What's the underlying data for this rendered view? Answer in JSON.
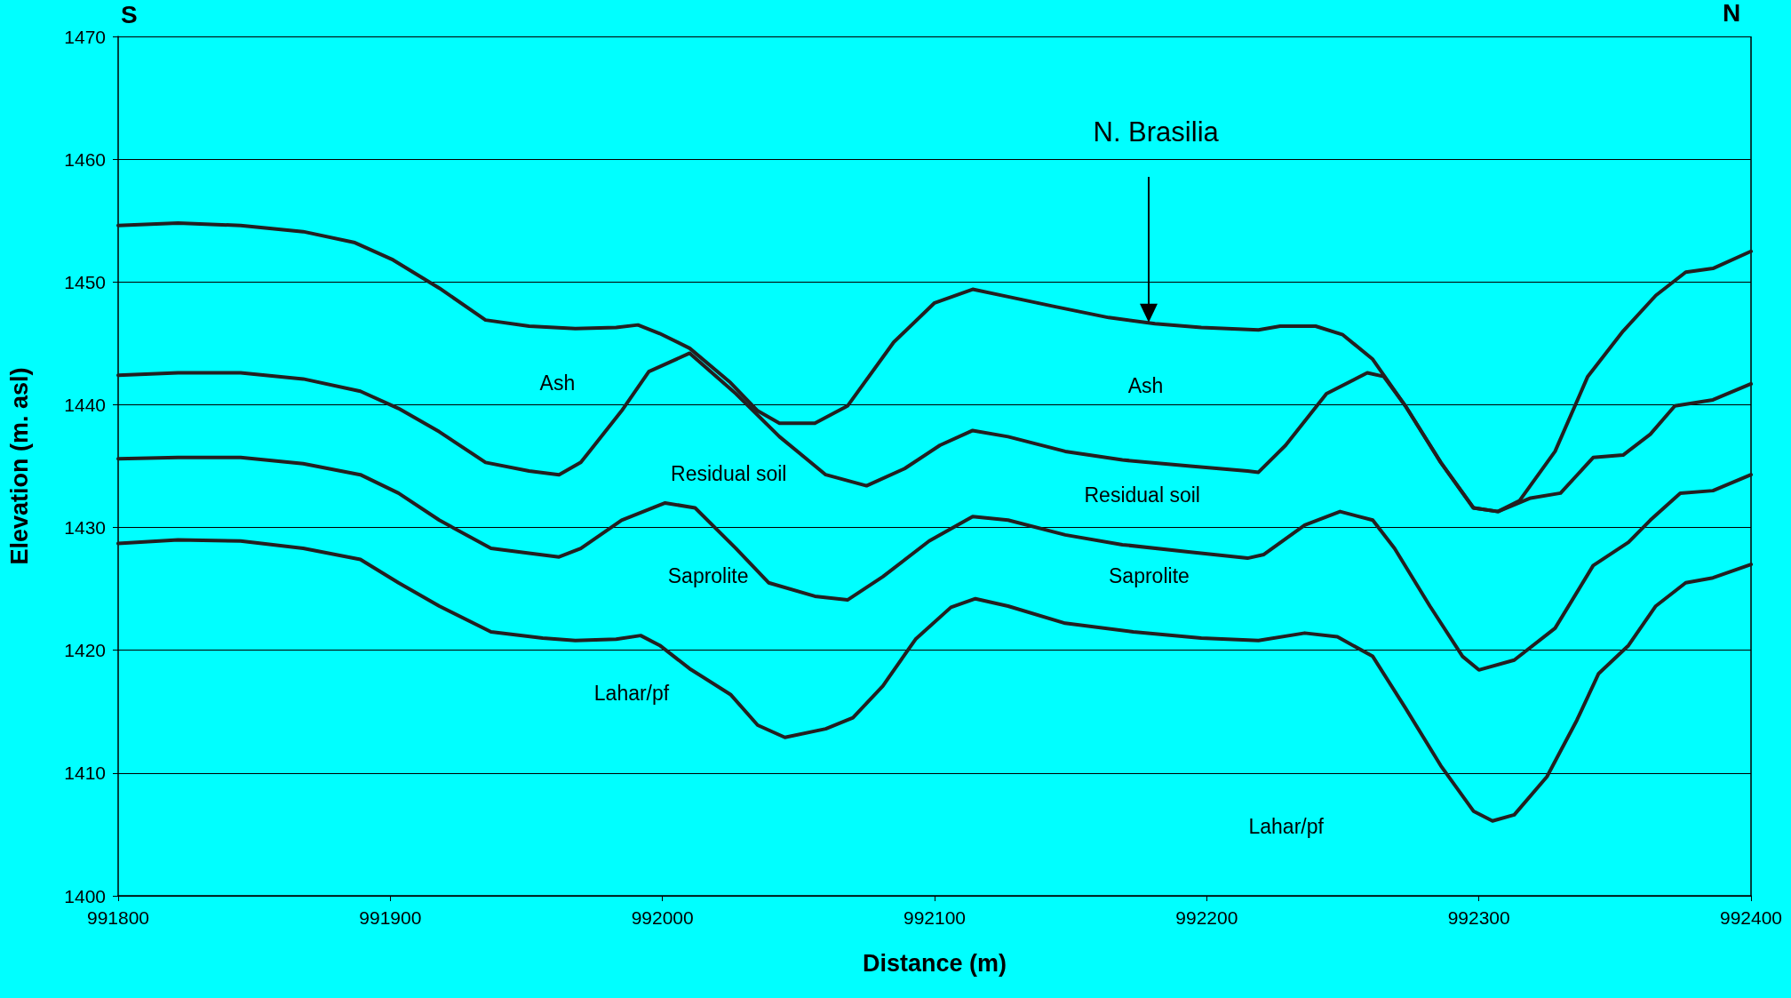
{
  "chart_data": {
    "type": "line",
    "xlabel": "Distance (m)",
    "ylabel": "Elevation (m. asl)",
    "xlim": [
      991800,
      992400
    ],
    "xticks": [
      991800,
      991900,
      992000,
      992100,
      992200,
      992300,
      992400
    ],
    "ylim": [
      1400,
      1470
    ],
    "yticks": [
      1400,
      1410,
      1420,
      1430,
      1440,
      1450,
      1460,
      1470
    ],
    "grid": "y",
    "marker": "none",
    "line_style": "solid",
    "series": [
      {
        "color": "#231f20",
        "x": [
          991800,
          991822,
          991845,
          991868,
          991887,
          991901,
          991918,
          991935,
          991951,
          991968,
          991983,
          991991,
          991999,
          992010,
          992025,
          992035,
          992043,
          992056,
          992068,
          992085,
          992100,
          992114,
          992127,
          992144,
          992164,
          992181,
          992198,
          992219,
          992227,
          992240,
          992250,
          992261,
          992273,
          992286,
          992298,
          992307,
          992315,
          992328,
          992340,
          992353,
          992365,
          992376,
          992386,
          992400
        ],
        "values": [
          1454.6,
          1454.8,
          1454.6,
          1454.1,
          1453.2,
          1451.8,
          1449.5,
          1446.9,
          1446.4,
          1446.2,
          1446.3,
          1446.5,
          1445.8,
          1444.6,
          1441.8,
          1439.5,
          1438.5,
          1438.5,
          1439.9,
          1445.1,
          1448.3,
          1449.4,
          1448.8,
          1448.0,
          1447.1,
          1446.6,
          1446.3,
          1446.1,
          1446.4,
          1446.4,
          1445.7,
          1443.7,
          1439.9,
          1435.3,
          1431.6,
          1431.3,
          1432.2,
          1436.2,
          1442.3,
          1446.0,
          1448.9,
          1450.8,
          1451.1,
          1452.5
        ]
      },
      {
        "color": "#231f20",
        "x": [
          991800,
          991822,
          991845,
          991868,
          991889,
          991903,
          991918,
          991935,
          991951,
          991962,
          991970,
          991985,
          991995,
          992010,
          992027,
          992043,
          992060,
          992075,
          992089,
          992102,
          992114,
          992127,
          992148,
          992169,
          992194,
          992215,
          992219,
          992229,
          992244,
          992259,
          992265,
          992273,
          992286,
          992298,
          992307,
          992319,
          992330,
          992342,
          992353,
          992363,
          992372,
          992386,
          992400
        ],
        "values": [
          1442.4,
          1442.6,
          1442.6,
          1442.1,
          1441.1,
          1439.7,
          1437.8,
          1435.3,
          1434.6,
          1434.3,
          1435.3,
          1439.5,
          1442.7,
          1444.2,
          1440.9,
          1437.4,
          1434.3,
          1433.4,
          1434.8,
          1436.7,
          1437.9,
          1437.4,
          1436.2,
          1435.5,
          1435.0,
          1434.6,
          1434.5,
          1436.7,
          1440.9,
          1442.6,
          1442.3,
          1439.9,
          1435.3,
          1431.6,
          1431.3,
          1432.4,
          1432.8,
          1435.7,
          1435.9,
          1437.6,
          1439.9,
          1440.4,
          1441.7
        ]
      },
      {
        "color": "#231f20",
        "x": [
          991800,
          991822,
          991845,
          991868,
          991889,
          991903,
          991918,
          991937,
          991951,
          991962,
          991970,
          991985,
          992001,
          992012,
          992027,
          992039,
          992056,
          992068,
          992081,
          992098,
          992114,
          992127,
          992148,
          992169,
          992194,
          992215,
          992221,
          992236,
          992249,
          992261,
          992269,
          992282,
          992294,
          992300,
          992313,
          992328,
          992342,
          992355,
          992363,
          992374,
          992386,
          992400
        ],
        "values": [
          1435.6,
          1435.7,
          1435.7,
          1435.2,
          1434.3,
          1432.8,
          1430.6,
          1428.3,
          1427.9,
          1427.6,
          1428.3,
          1430.6,
          1432.0,
          1431.6,
          1428.3,
          1425.5,
          1424.4,
          1424.1,
          1426.0,
          1428.9,
          1430.9,
          1430.6,
          1429.4,
          1428.6,
          1428.0,
          1427.5,
          1427.8,
          1430.2,
          1431.3,
          1430.6,
          1428.3,
          1423.6,
          1419.5,
          1418.4,
          1419.2,
          1421.8,
          1426.9,
          1428.8,
          1430.6,
          1432.8,
          1433.0,
          1434.3
        ]
      },
      {
        "color": "#231f20",
        "x": [
          991800,
          991822,
          991845,
          991868,
          991889,
          991903,
          991918,
          991937,
          991956,
          991968,
          991983,
          991992,
          991999,
          992010,
          992025,
          992035,
          992045,
          992060,
          992070,
          992081,
          992093,
          992106,
          992115,
          992127,
          992148,
          992173,
          992198,
          992219,
          992236,
          992248,
          992261,
          992273,
          992286,
          992298,
          992305,
          992313,
          992325,
          992336,
          992344,
          992355,
          992365,
          992376,
          992386,
          992400
        ],
        "values": [
          1428.7,
          1429.0,
          1428.9,
          1428.3,
          1427.4,
          1425.5,
          1423.6,
          1421.5,
          1421.0,
          1420.8,
          1420.9,
          1421.2,
          1420.4,
          1418.5,
          1416.4,
          1413.9,
          1412.9,
          1413.6,
          1414.5,
          1417.1,
          1420.9,
          1423.5,
          1424.2,
          1423.6,
          1422.2,
          1421.5,
          1421.0,
          1420.8,
          1421.4,
          1421.1,
          1419.5,
          1415.3,
          1410.6,
          1406.9,
          1406.1,
          1406.6,
          1409.7,
          1414.3,
          1418.1,
          1420.4,
          1423.6,
          1425.5,
          1425.9,
          1427.0
        ]
      }
    ],
    "annotations": [
      "S",
      "N",
      "Ash",
      "Ash",
      "Residual soil",
      "Residual soil",
      "Saprolite",
      "Saprolite",
      "Lahar/pf",
      "Lahar/pf",
      "N. Brasilia"
    ]
  }
}
